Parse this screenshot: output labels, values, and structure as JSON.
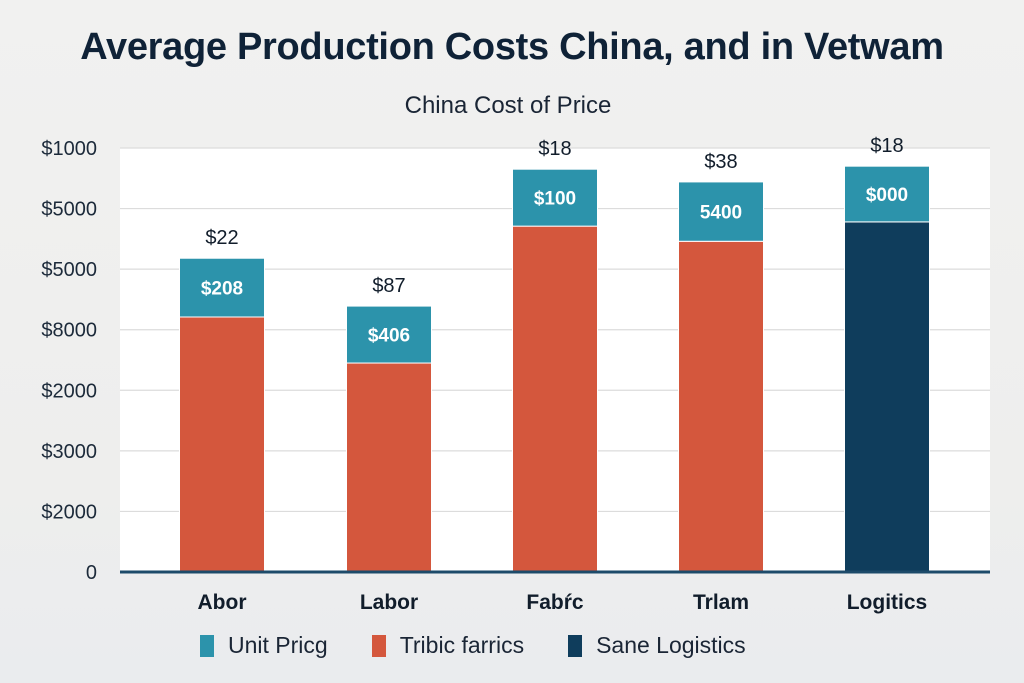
{
  "chart_data": {
    "type": "bar",
    "stacked": true,
    "title": "Average Production Costs China, and in Vetwam",
    "subtitle": "China Cost of Price",
    "xlabel": "",
    "ylabel": "",
    "categories": [
      "Abor",
      "Labor",
      "Fabŕc",
      "Trlam",
      "Logitics"
    ],
    "y_tick_labels": [
      "0",
      "$2000",
      "$3000",
      "$2000",
      "$8000",
      "$5000",
      "$5000",
      "$1000"
    ],
    "ylim": [
      0,
      7
    ],
    "grid": true,
    "series": [
      {
        "name": "Tribic farrics",
        "color": "#d4573d",
        "values": [
          4.21,
          3.45,
          5.71,
          5.46,
          null
        ]
      },
      {
        "name": "Sane Logistics",
        "color": "#0f3d5c",
        "values": [
          null,
          null,
          null,
          null,
          5.78
        ]
      },
      {
        "name": "Unit Pricg",
        "color": "#2c93ab",
        "values": [
          0.97,
          0.94,
          0.94,
          0.98,
          0.92
        ]
      }
    ],
    "segment_labels": [
      "$208",
      "$406",
      "$100",
      "5400",
      "$000"
    ],
    "total_labels": [
      "$22",
      "$87",
      "$18",
      "$38",
      "$18"
    ],
    "legend": {
      "position": "bottom",
      "entries": [
        {
          "label": "Unit Pricg",
          "color": "#2c93ab"
        },
        {
          "label": "Tribic farrics",
          "color": "#d4573d"
        },
        {
          "label": "Sane Logistics",
          "color": "#0f3d5c"
        }
      ]
    }
  }
}
